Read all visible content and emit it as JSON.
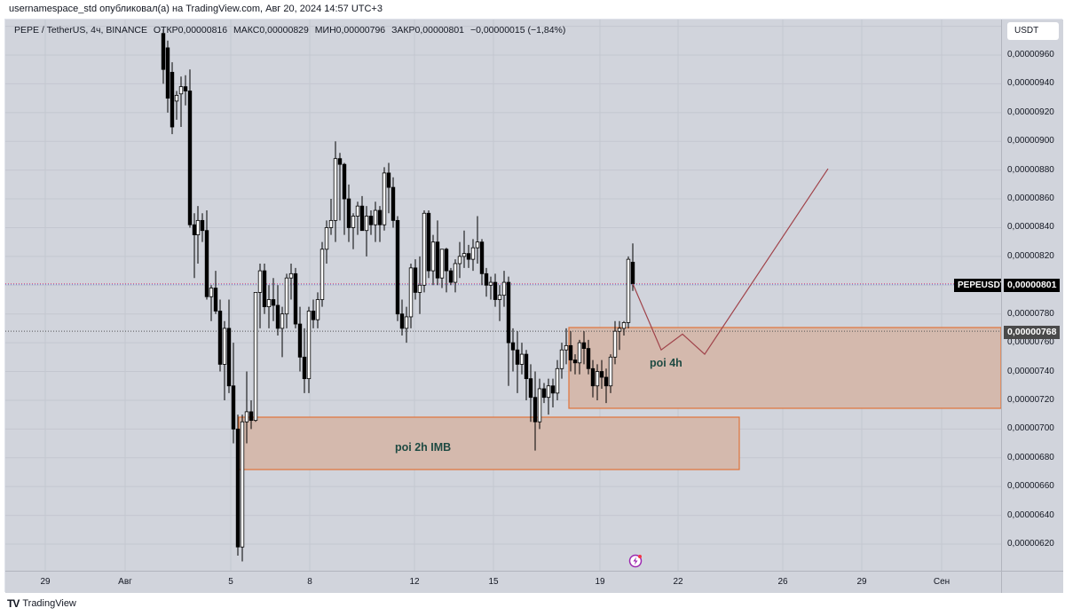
{
  "header": {
    "publish_line": "usernamespace_std опубликовал(а) на TradingView.com, Авг 20, 2024 14:57 UTC+3"
  },
  "legend": {
    "symbol": "PEPE / TetherUS, 4ч, BINANCE",
    "open_label": "ОТКР",
    "open": "0,00000816",
    "high_label": "МАКС",
    "high": "0,00000829",
    "low_label": "МИН",
    "low": "0,00000796",
    "close_label": "ЗАКР",
    "close": "0,00000801",
    "change": "−0,00000015 (−1,84%)"
  },
  "price_axis": {
    "currency_button": "USDT",
    "ticks": [
      "0,00000960",
      "0,00000940",
      "0,00000920",
      "0,00000900",
      "0,00000880",
      "0,00000860",
      "0,00000840",
      "0,00000820",
      "0,00000780",
      "0,00000760",
      "0,00000740",
      "0,00000720",
      "0,00000700",
      "0,00000680",
      "0,00000660",
      "0,00000640",
      "0,00000620"
    ],
    "last_price_symbol": "PEPEUSDT",
    "last_price": "0,00000801",
    "marker_price": "0,00000768"
  },
  "time_axis": {
    "ticks": [
      "29",
      "Авг",
      "5",
      "8",
      "12",
      "15",
      "19",
      "22",
      "26",
      "29",
      "Сен"
    ]
  },
  "annotations": {
    "zone_2h_label": "poi 2h IMB",
    "zone_4h_label": "poi 4h"
  },
  "footer": {
    "logo": "TV",
    "brand": "TradingView"
  },
  "colors": {
    "background": "#d1d4dc",
    "zone_fill": "#d4b9ad",
    "zone_border": "#e0733a",
    "projection_line": "#a0434a",
    "bull_candle": "#ffffff",
    "bear_candle": "#000000",
    "label_text": "#1f4b43"
  },
  "chart_data": {
    "type": "candlestick",
    "title": "PEPE / TetherUS, 4ч, BINANCE",
    "xlabel": "",
    "ylabel": "USDT",
    "ylim": [
      6.05e-06,
      9.75e-06
    ],
    "y_scale_units": "1e-8",
    "grid": true,
    "x_ticks": [
      "29",
      "Авг",
      "5",
      "8",
      "12",
      "15",
      "19",
      "22",
      "26",
      "29",
      "Сен"
    ],
    "y_ticks": [
      9.6e-06,
      9.4e-06,
      9.2e-06,
      9e-06,
      8.8e-06,
      8.6e-06,
      8.4e-06,
      8.2e-06,
      8e-06,
      7.8e-06,
      7.6e-06,
      7.4e-06,
      7.2e-06,
      7e-06,
      6.8e-06,
      6.6e-06,
      6.4e-06,
      6.2e-06
    ],
    "last": {
      "open": 8.16e-06,
      "high": 8.29e-06,
      "low": 7.96e-06,
      "close": 8.01e-06,
      "change": -1.5e-07,
      "change_pct": -1.84
    },
    "note": "Candle OHLC values in units of 1e-8 USDT, estimated from pixel positions; x is approximate screen position",
    "candles": [
      [
        183,
        975,
        978,
        940,
        950
      ],
      [
        188,
        965,
        970,
        920,
        930
      ],
      [
        193,
        948,
        955,
        905,
        910
      ],
      [
        198,
        928,
        935,
        915,
        932
      ],
      [
        203,
        933,
        945,
        910,
        938
      ],
      [
        208,
        938,
        946,
        925,
        935
      ],
      [
        213,
        935,
        950,
        840,
        842
      ],
      [
        218,
        842,
        850,
        805,
        835
      ],
      [
        222,
        835,
        855,
        815,
        845
      ],
      [
        227,
        845,
        850,
        830,
        838
      ],
      [
        232,
        838,
        852,
        790,
        792
      ],
      [
        237,
        792,
        800,
        775,
        798
      ],
      [
        242,
        798,
        810,
        780,
        782
      ],
      [
        247,
        782,
        790,
        740,
        745
      ],
      [
        252,
        745,
        775,
        720,
        770
      ],
      [
        257,
        770,
        790,
        725,
        730
      ],
      [
        262,
        730,
        760,
        690,
        700
      ],
      [
        267,
        700,
        710,
        612,
        618
      ],
      [
        272,
        618,
        710,
        608,
        705
      ],
      [
        277,
        705,
        740,
        690,
        712
      ],
      [
        282,
        712,
        720,
        700,
        706
      ],
      [
        287,
        706,
        770,
        705,
        795
      ],
      [
        292,
        795,
        815,
        770,
        810
      ],
      [
        297,
        810,
        815,
        780,
        785
      ],
      [
        302,
        785,
        800,
        770,
        790
      ],
      [
        307,
        790,
        805,
        775,
        786
      ],
      [
        312,
        786,
        800,
        765,
        770
      ],
      [
        317,
        770,
        785,
        750,
        780
      ],
      [
        322,
        780,
        808,
        770,
        805
      ],
      [
        327,
        805,
        815,
        790,
        808
      ],
      [
        332,
        808,
        812,
        770,
        773
      ],
      [
        337,
        773,
        785,
        740,
        750
      ],
      [
        342,
        750,
        770,
        725,
        735
      ],
      [
        347,
        735,
        785,
        725,
        782
      ],
      [
        352,
        782,
        790,
        770,
        776
      ],
      [
        357,
        776,
        795,
        770,
        790
      ],
      [
        362,
        790,
        830,
        785,
        825
      ],
      [
        367,
        825,
        845,
        815,
        840
      ],
      [
        372,
        840,
        860,
        835,
        845
      ],
      [
        377,
        845,
        900,
        830,
        888
      ],
      [
        382,
        888,
        892,
        845,
        884
      ],
      [
        387,
        884,
        885,
        835,
        860
      ],
      [
        392,
        860,
        870,
        830,
        840
      ],
      [
        397,
        840,
        850,
        825,
        848
      ],
      [
        402,
        848,
        858,
        835,
        855
      ],
      [
        407,
        855,
        862,
        840,
        838
      ],
      [
        412,
        838,
        855,
        820,
        848
      ],
      [
        417,
        848,
        852,
        835,
        842
      ],
      [
        422,
        842,
        858,
        830,
        852
      ],
      [
        427,
        852,
        855,
        830,
        842
      ],
      [
        432,
        842,
        882,
        838,
        878
      ],
      [
        437,
        878,
        885,
        850,
        868
      ],
      [
        442,
        868,
        875,
        840,
        845
      ],
      [
        447,
        845,
        848,
        775,
        780
      ],
      [
        452,
        780,
        790,
        765,
        770
      ],
      [
        457,
        770,
        785,
        760,
        778
      ],
      [
        462,
        778,
        815,
        770,
        812
      ],
      [
        467,
        812,
        818,
        790,
        795
      ],
      [
        472,
        795,
        820,
        780,
        800
      ],
      [
        477,
        800,
        852,
        795,
        850
      ],
      [
        482,
        850,
        852,
        805,
        810
      ],
      [
        487,
        810,
        835,
        800,
        830
      ],
      [
        492,
        830,
        845,
        800,
        805
      ],
      [
        497,
        805,
        822,
        798,
        825
      ],
      [
        502,
        825,
        826,
        795,
        810
      ],
      [
        507,
        810,
        812,
        800,
        802
      ],
      [
        512,
        802,
        818,
        795,
        815
      ],
      [
        517,
        815,
        830,
        805,
        820
      ],
      [
        522,
        820,
        838,
        812,
        822
      ],
      [
        527,
        822,
        828,
        812,
        818
      ],
      [
        532,
        818,
        832,
        810,
        826
      ],
      [
        537,
        826,
        848,
        815,
        830
      ],
      [
        542,
        830,
        832,
        800,
        808
      ],
      [
        547,
        808,
        812,
        792,
        800
      ],
      [
        552,
        800,
        806,
        790,
        802
      ],
      [
        557,
        802,
        808,
        785,
        790
      ],
      [
        562,
        790,
        800,
        775,
        793
      ],
      [
        567,
        793,
        810,
        785,
        802
      ],
      [
        572,
        802,
        806,
        730,
        760
      ],
      [
        577,
        760,
        770,
        740,
        755
      ],
      [
        582,
        755,
        768,
        725,
        745
      ],
      [
        587,
        745,
        760,
        738,
        752
      ],
      [
        592,
        752,
        755,
        720,
        735
      ],
      [
        597,
        735,
        745,
        705,
        722
      ],
      [
        602,
        722,
        740,
        685,
        705
      ],
      [
        607,
        705,
        735,
        700,
        728
      ],
      [
        612,
        728,
        732,
        718,
        722
      ],
      [
        617,
        722,
        735,
        710,
        730
      ],
      [
        622,
        730,
        735,
        715,
        725
      ],
      [
        627,
        725,
        748,
        720,
        742
      ],
      [
        632,
        742,
        760,
        735,
        755
      ],
      [
        637,
        755,
        770,
        745,
        758
      ],
      [
        642,
        758,
        768,
        740,
        748
      ],
      [
        647,
        748,
        752,
        738,
        746
      ],
      [
        652,
        746,
        762,
        738,
        760
      ],
      [
        657,
        760,
        768,
        745,
        756
      ],
      [
        662,
        756,
        762,
        738,
        742
      ],
      [
        667,
        742,
        748,
        722,
        730
      ],
      [
        672,
        730,
        745,
        720,
        740
      ],
      [
        677,
        740,
        748,
        728,
        736
      ],
      [
        682,
        736,
        742,
        718,
        730
      ],
      [
        687,
        730,
        752,
        725,
        750
      ],
      [
        692,
        750,
        775,
        745,
        768
      ],
      [
        697,
        768,
        775,
        755,
        770
      ],
      [
        702,
        770,
        775,
        765,
        774
      ],
      [
        707,
        774,
        820,
        770,
        818
      ],
      [
        712,
        816,
        829,
        796,
        801
      ]
    ],
    "zones": [
      {
        "label": "poi 2h IMB",
        "top": 7.1e-06,
        "bottom": 6.73e-06,
        "x_from": "Авг 5",
        "x_to": "≈Авг 24"
      },
      {
        "label": "poi 4h",
        "top": 7.7e-06,
        "bottom": 7.15e-06,
        "x_from": "≈Авг 17",
        "x_to": "right edge"
      }
    ],
    "projection_path": [
      [
        712,
        8.01e-06
      ],
      [
        744,
        7.55e-06
      ],
      [
        768,
        7.66e-06
      ],
      [
        793,
        7.52e-06
      ],
      [
        932,
        8.81e-06
      ]
    ],
    "horizontal_lines": [
      8.01e-06,
      7.68e-06
    ]
  }
}
